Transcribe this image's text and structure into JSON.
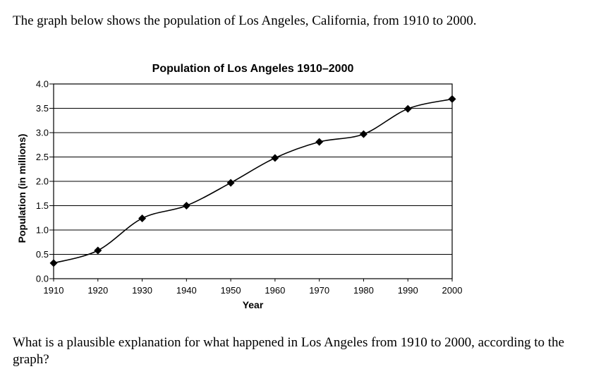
{
  "intro_text": "The graph below shows the population of Los Angeles, California, from 1910 to 2000.",
  "question_text": "What is a plausible explanation for what happened in Los Angeles from 1910 to 2000, according to the graph?",
  "chart_data": {
    "type": "line",
    "title": "Population of Los Angeles 1910–2000",
    "xlabel": "Year",
    "ylabel": "Population (in millions)",
    "x": [
      1910,
      1920,
      1930,
      1940,
      1950,
      1960,
      1970,
      1980,
      1990,
      2000
    ],
    "series": [
      {
        "name": "Population",
        "values": [
          0.32,
          0.58,
          1.24,
          1.5,
          1.97,
          2.48,
          2.81,
          2.97,
          3.49,
          3.69
        ]
      }
    ],
    "xlim": [
      1910,
      2000
    ],
    "ylim": [
      0,
      4.0
    ],
    "xticks": [
      "1910",
      "1920",
      "1930",
      "1940",
      "1950",
      "1960",
      "1970",
      "1980",
      "1990",
      "2000"
    ],
    "yticks": [
      "0.0",
      "0.5",
      "1.0",
      "1.5",
      "2.0",
      "2.5",
      "3.0",
      "3.5",
      "4.0"
    ],
    "grid": true,
    "line_color": "#000000",
    "marker": "diamond"
  }
}
